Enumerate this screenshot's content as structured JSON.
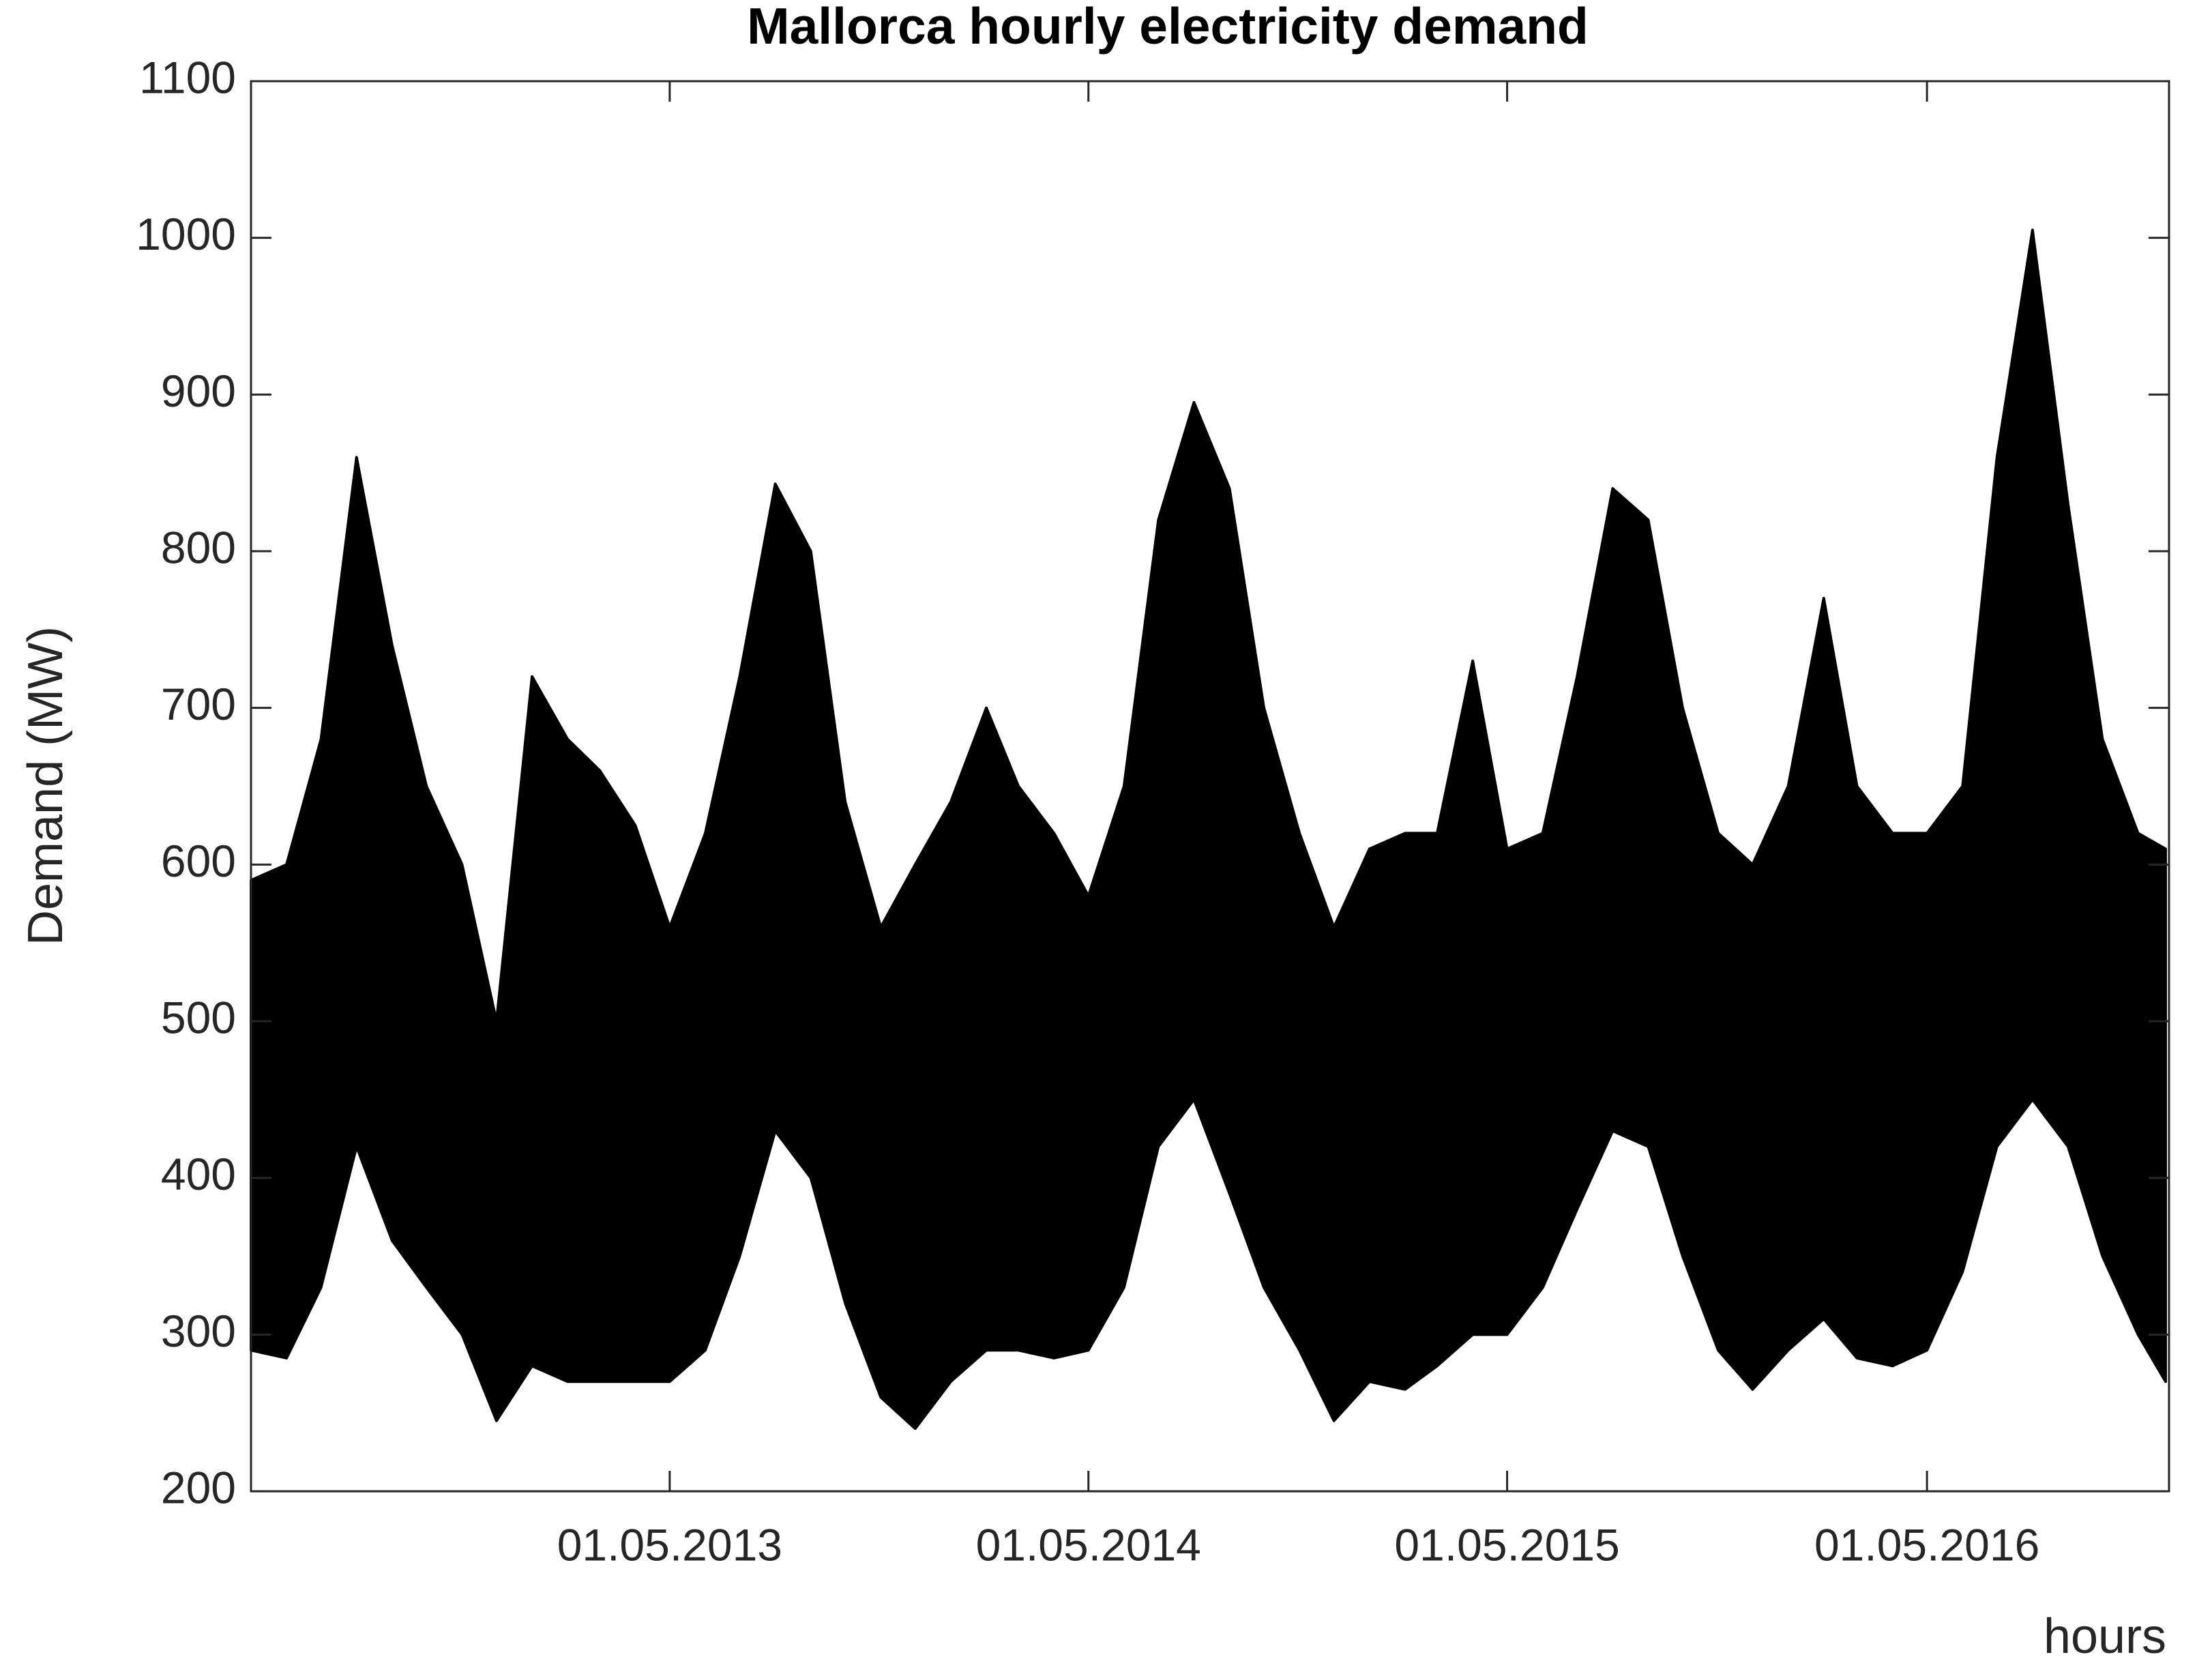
{
  "chart_data": {
    "type": "range-area",
    "title": "Mallorca hourly electricity demand",
    "ylabel": "Demand (MW)",
    "xlabel": "hours",
    "color": "#000000",
    "x": [
      "2012-05-01",
      "2012-06-01",
      "2012-07-01",
      "2012-08-01",
      "2012-09-01",
      "2012-10-01",
      "2012-11-01",
      "2012-12-01",
      "2013-01-01",
      "2013-02-01",
      "2013-03-01",
      "2013-04-01",
      "2013-05-01",
      "2013-06-01",
      "2013-07-01",
      "2013-08-01",
      "2013-09-01",
      "2013-10-01",
      "2013-11-01",
      "2013-12-01",
      "2014-01-01",
      "2014-02-01",
      "2014-03-01",
      "2014-04-01",
      "2014-05-01",
      "2014-06-01",
      "2014-07-01",
      "2014-08-01",
      "2014-09-01",
      "2014-10-01",
      "2014-11-01",
      "2014-12-01",
      "2015-01-01",
      "2015-02-01",
      "2015-03-01",
      "2015-04-01",
      "2015-05-01",
      "2015-06-01",
      "2015-07-01",
      "2015-08-01",
      "2015-09-01",
      "2015-10-01",
      "2015-11-01",
      "2015-12-01",
      "2016-01-01",
      "2016-02-01",
      "2016-03-01",
      "2016-04-01",
      "2016-05-01",
      "2016-06-01",
      "2016-07-01",
      "2016-08-01",
      "2016-09-01",
      "2016-10-01",
      "2016-11-01",
      "2016-11-25"
    ],
    "high": [
      590,
      600,
      680,
      860,
      740,
      650,
      600,
      500,
      720,
      680,
      660,
      625,
      560,
      620,
      720,
      843,
      800,
      640,
      560,
      600,
      640,
      700,
      650,
      620,
      580,
      650,
      820,
      895,
      840,
      700,
      620,
      560,
      610,
      620,
      620,
      730,
      610,
      620,
      720,
      840,
      820,
      700,
      620,
      600,
      650,
      770,
      650,
      620,
      620,
      650,
      860,
      1005,
      830,
      680,
      620,
      610
    ],
    "low": [
      290,
      285,
      330,
      420,
      360,
      330,
      300,
      245,
      280,
      270,
      270,
      270,
      270,
      290,
      350,
      430,
      400,
      320,
      260,
      240,
      270,
      290,
      290,
      285,
      290,
      330,
      420,
      450,
      390,
      330,
      290,
      245,
      270,
      265,
      280,
      300,
      300,
      330,
      380,
      430,
      420,
      350,
      290,
      265,
      290,
      310,
      285,
      280,
      290,
      340,
      420,
      450,
      420,
      350,
      300,
      270
    ],
    "xlim": [
      "2012-05-01",
      "2016-11-28"
    ],
    "xticks": [
      {
        "value": "2013-05-01",
        "label": "01.05.2013"
      },
      {
        "value": "2014-05-01",
        "label": "01.05.2014"
      },
      {
        "value": "2015-05-01",
        "label": "01.05.2015"
      },
      {
        "value": "2016-05-01",
        "label": "01.05.2016"
      }
    ],
    "ylim": [
      200,
      1100
    ],
    "yticks": [
      200,
      300,
      400,
      500,
      600,
      700,
      800,
      900,
      1000,
      1100
    ],
    "grid": false
  }
}
